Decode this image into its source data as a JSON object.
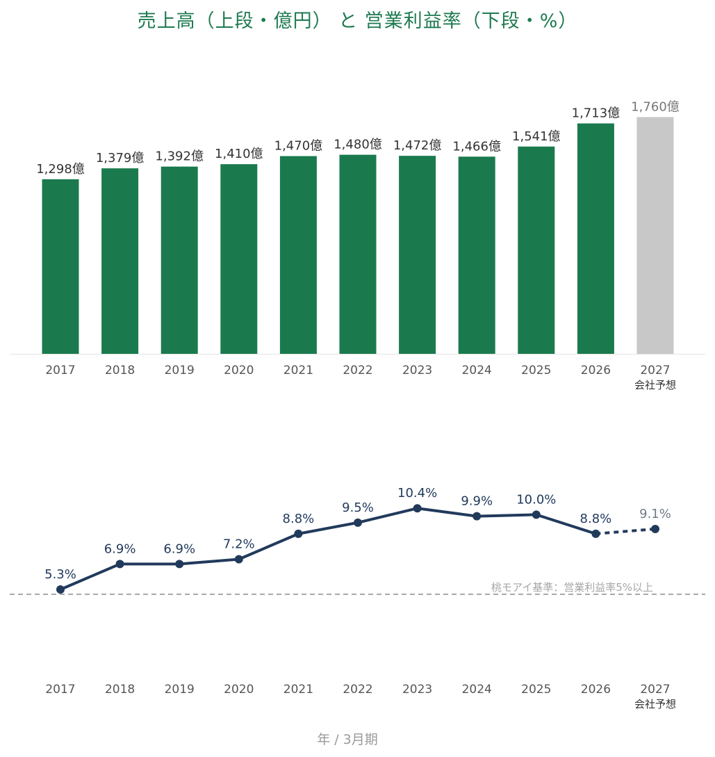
{
  "title": "売上高（上段・億円） と 営業利益率（下段・%）",
  "footer": "年 / 3月期",
  "colors": {
    "bar": "#1a7a4e",
    "forecast_bar": "#c8c8c8",
    "line": "#213a5c",
    "threshold": "#a6a6a6",
    "title": "#1e7a50"
  },
  "chart_data": [
    {
      "type": "bar",
      "categories": [
        "2017",
        "2018",
        "2019",
        "2020",
        "2021",
        "2022",
        "2023",
        "2024",
        "2025",
        "2026",
        "2027"
      ],
      "category_sublabels": [
        "",
        "",
        "",
        "",
        "",
        "",
        "",
        "",
        "",
        "",
        "会社予想"
      ],
      "values": [
        1298,
        1379,
        1392,
        1410,
        1470,
        1480,
        1472,
        1466,
        1541,
        1713,
        1760
      ],
      "data_labels": [
        "1,298億",
        "1,379億",
        "1,392億",
        "1,410億",
        "1,470億",
        "1,480億",
        "1,472億",
        "1,466億",
        "1,541億",
        "1,713億",
        "1,760億"
      ],
      "forecast": [
        false,
        false,
        false,
        false,
        false,
        false,
        false,
        false,
        false,
        false,
        true
      ],
      "ylim": [
        0,
        1800
      ],
      "grid": false
    },
    {
      "type": "line",
      "categories": [
        "2017",
        "2018",
        "2019",
        "2020",
        "2021",
        "2022",
        "2023",
        "2024",
        "2025",
        "2026",
        "2027"
      ],
      "category_sublabels": [
        "",
        "",
        "",
        "",
        "",
        "",
        "",
        "",
        "",
        "",
        "会社予想"
      ],
      "values": [
        5.3,
        6.9,
        6.9,
        7.2,
        8.8,
        9.5,
        10.4,
        9.9,
        10.0,
        8.8,
        9.1
      ],
      "data_labels": [
        "5.3%",
        "6.9%",
        "6.9%",
        "7.2%",
        "8.8%",
        "9.5%",
        "10.4%",
        "9.9%",
        "10.0%",
        "8.8%",
        "9.1%"
      ],
      "forecast": [
        false,
        false,
        false,
        false,
        false,
        false,
        false,
        false,
        false,
        false,
        true
      ],
      "reference_line": {
        "value": 5.0,
        "label": "桃モアイ基準：営業利益率5%以上"
      },
      "ylim": [
        1.3,
        11.6
      ],
      "grid": false
    }
  ]
}
